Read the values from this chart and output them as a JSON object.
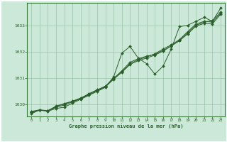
{
  "xlabel": "Graphe pression niveau de la mer (hPa)",
  "background_color": "#cce8d8",
  "plot_bg_color": "#cce8d8",
  "border_color": "#3a7a3a",
  "grid_color": "#99c4aa",
  "line_color": "#2a5e2a",
  "xlim": [
    -0.5,
    23.5
  ],
  "ylim": [
    1029.55,
    1033.85
  ],
  "yticks": [
    1030,
    1031,
    1032,
    1033
  ],
  "xticks": [
    0,
    1,
    2,
    3,
    4,
    5,
    6,
    7,
    8,
    9,
    10,
    11,
    12,
    13,
    14,
    15,
    16,
    17,
    18,
    19,
    20,
    21,
    22,
    23
  ],
  "series": [
    [
      1029.65,
      1029.8,
      1029.75,
      1029.85,
      1029.9,
      1030.05,
      1030.2,
      1030.35,
      1030.5,
      1030.65,
      1031.05,
      1031.95,
      1032.2,
      1031.75,
      1031.55,
      1031.15,
      1031.45,
      1032.1,
      1032.95,
      1033.0,
      1033.15,
      1033.3,
      1033.15,
      1033.65
    ],
    [
      1029.7,
      1029.78,
      1029.76,
      1029.9,
      1029.98,
      1030.1,
      1030.22,
      1030.37,
      1030.52,
      1030.68,
      1030.98,
      1031.28,
      1031.6,
      1031.74,
      1031.83,
      1031.9,
      1032.05,
      1032.22,
      1032.42,
      1032.72,
      1033.0,
      1033.12,
      1033.18,
      1033.5
    ],
    [
      1029.72,
      1029.79,
      1029.76,
      1029.92,
      1030.02,
      1030.13,
      1030.25,
      1030.4,
      1030.55,
      1030.7,
      1031.0,
      1031.25,
      1031.55,
      1031.7,
      1031.8,
      1031.92,
      1032.1,
      1032.26,
      1032.46,
      1032.76,
      1033.05,
      1033.15,
      1033.12,
      1033.45
    ],
    [
      1029.74,
      1029.8,
      1029.77,
      1029.94,
      1030.04,
      1030.12,
      1030.23,
      1030.41,
      1030.56,
      1030.67,
      1030.96,
      1031.22,
      1031.52,
      1031.66,
      1031.76,
      1031.87,
      1032.02,
      1032.22,
      1032.42,
      1032.67,
      1032.97,
      1033.07,
      1033.05,
      1033.42
    ]
  ]
}
